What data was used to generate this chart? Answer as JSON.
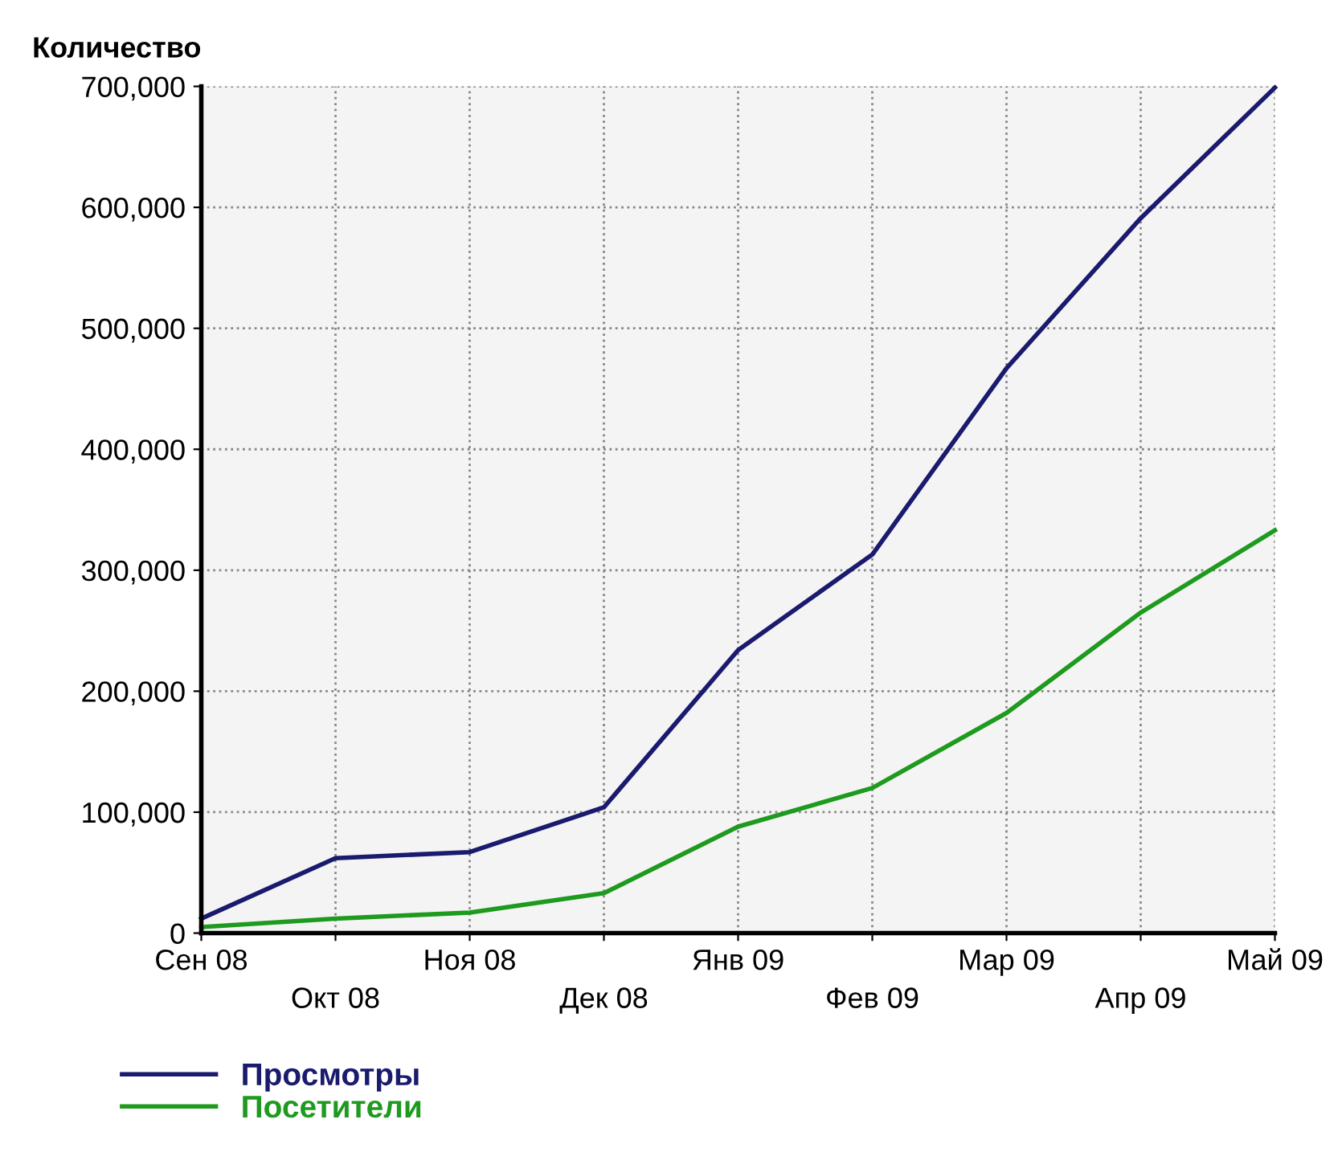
{
  "chart_data": {
    "type": "line",
    "ylabel": "Количество",
    "categories": [
      "Сен 08",
      "Окт 08",
      "Ноя 08",
      "Дек 08",
      "Янв 09",
      "Фев 09",
      "Мар 09",
      "Апр 09",
      "Май 09"
    ],
    "series": [
      {
        "name": "Просмотры",
        "color": "#1a1a6e",
        "values": [
          12000,
          62000,
          67000,
          104000,
          234000,
          313000,
          467000,
          591000,
          699000
        ]
      },
      {
        "name": "Посетители",
        "color": "#1e9a1e",
        "values": [
          5000,
          12000,
          17000,
          33000,
          88000,
          120000,
          182000,
          265000,
          333000
        ]
      }
    ],
    "ylim": [
      0,
      700000
    ],
    "yticks": [
      {
        "value": 0,
        "label": "0"
      },
      {
        "value": 100000,
        "label": "100,000"
      },
      {
        "value": 200000,
        "label": "200,000"
      },
      {
        "value": 300000,
        "label": "300,000"
      },
      {
        "value": 400000,
        "label": "400,000"
      },
      {
        "value": 500000,
        "label": "500,000"
      },
      {
        "value": 600000,
        "label": "600,000"
      },
      {
        "value": 700000,
        "label": "700,000"
      }
    ],
    "grid": true,
    "legend": "bottom left",
    "marker": "none",
    "line_style": "solid"
  }
}
